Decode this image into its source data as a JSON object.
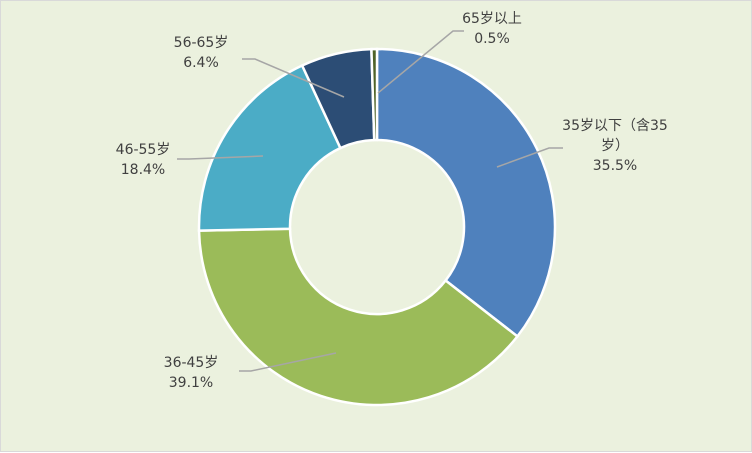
{
  "chart_data": {
    "type": "pie",
    "subtype": "donut",
    "title": "",
    "categories": [
      "35岁以下（含35岁）",
      "36-45岁",
      "46-55岁",
      "56-65岁",
      "65岁以上"
    ],
    "values": [
      35.5,
      39.1,
      18.4,
      6.4,
      0.5
    ],
    "value_labels": [
      "35.5%",
      "39.1%",
      "18.4%",
      "6.4%",
      "0.5%"
    ],
    "label_lines": [
      [
        "35岁以下（含35",
        "岁）"
      ],
      [
        "36-45岁"
      ],
      [
        "46-55岁"
      ],
      [
        "56-65岁"
      ],
      [
        "65岁以上"
      ]
    ],
    "colors": [
      "#4f81bd",
      "#9bbb59",
      "#4bacc6",
      "#2c4d75",
      "#4f6228"
    ],
    "start": "12 o'clock",
    "direction": "clockwise",
    "legend": "none"
  }
}
